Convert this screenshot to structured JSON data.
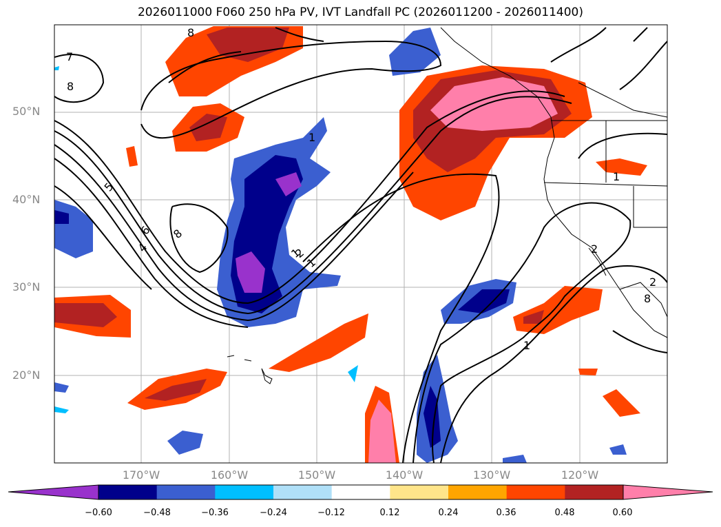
{
  "title": "2026011000 F060 250 hPa PV, IVT Landfall PC (2026011200 - 2026011400)",
  "lat_labels": [
    {
      "text": "50°N",
      "lat": 50
    },
    {
      "text": "40°N",
      "lat": 40
    },
    {
      "text": "30°N",
      "lat": 30
    },
    {
      "text": "20°N",
      "lat": 20
    }
  ],
  "lon_labels": [
    {
      "text": "170°W",
      "lon": -170
    },
    {
      "text": "160°W",
      "lon": -160
    },
    {
      "text": "150°W",
      "lon": -150
    },
    {
      "text": "140°W",
      "lon": -140
    },
    {
      "text": "130°W",
      "lon": -130
    },
    {
      "text": "120°W",
      "lon": -120
    }
  ],
  "colorbar": {
    "ticks": [
      "−0.60",
      "−0.48",
      "−0.36",
      "−0.24",
      "−0.12",
      "0.12",
      "0.24",
      "0.36",
      "0.48",
      "0.60"
    ],
    "colors": [
      "#9932cc",
      "#00008b",
      "#3b5fd0",
      "#00bfff",
      "#b0e0f8",
      "#ffffff",
      "#ffe58a",
      "#ffa500",
      "#ff4500",
      "#b22222",
      "#ff7faa"
    ]
  },
  "contour_labels": [
    "8",
    "7",
    "8",
    "5",
    "6",
    "4",
    "8",
    "1",
    "1",
    "2",
    "2",
    "1",
    "1",
    "2",
    "8",
    "1"
  ]
}
